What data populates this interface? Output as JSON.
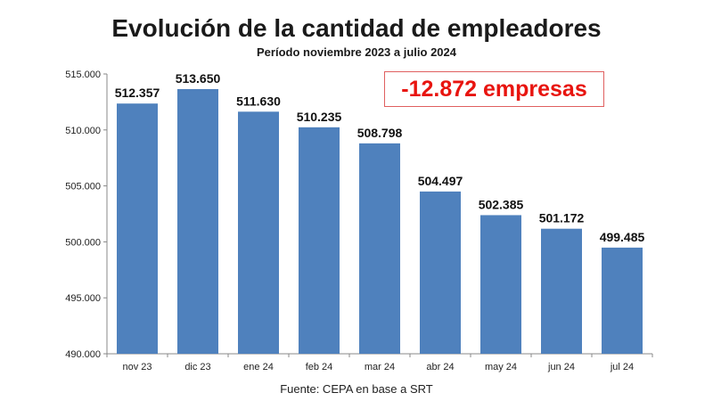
{
  "chart_data": {
    "type": "bar",
    "title": "Evolución de la cantidad de empleadores",
    "subtitle": "Período noviembre 2023 a julio 2024",
    "categories": [
      "nov 23",
      "dic 23",
      "ene 24",
      "feb 24",
      "mar 24",
      "abr 24",
      "may 24",
      "jun 24",
      "jul 24"
    ],
    "values": [
      512357,
      513650,
      511630,
      510235,
      508798,
      504497,
      502385,
      501172,
      499485
    ],
    "value_labels": [
      "512.357",
      "513.650",
      "511.630",
      "510.235",
      "508.798",
      "504.497",
      "502.385",
      "501.172",
      "499.485"
    ],
    "ylim": [
      490000,
      515000
    ],
    "yticks": [
      490000,
      495000,
      500000,
      505000,
      510000,
      515000
    ],
    "ytick_labels": [
      "490.000",
      "495.000",
      "500.000",
      "505.000",
      "510.000",
      "515.000"
    ],
    "xlabel": "",
    "ylabel": "",
    "grid": false,
    "bar_color": "#4f81bd",
    "annotation": "-12.872 empresas",
    "annotation_color": "#e8140f",
    "source": "Fuente: CEPA en base a SRT"
  }
}
